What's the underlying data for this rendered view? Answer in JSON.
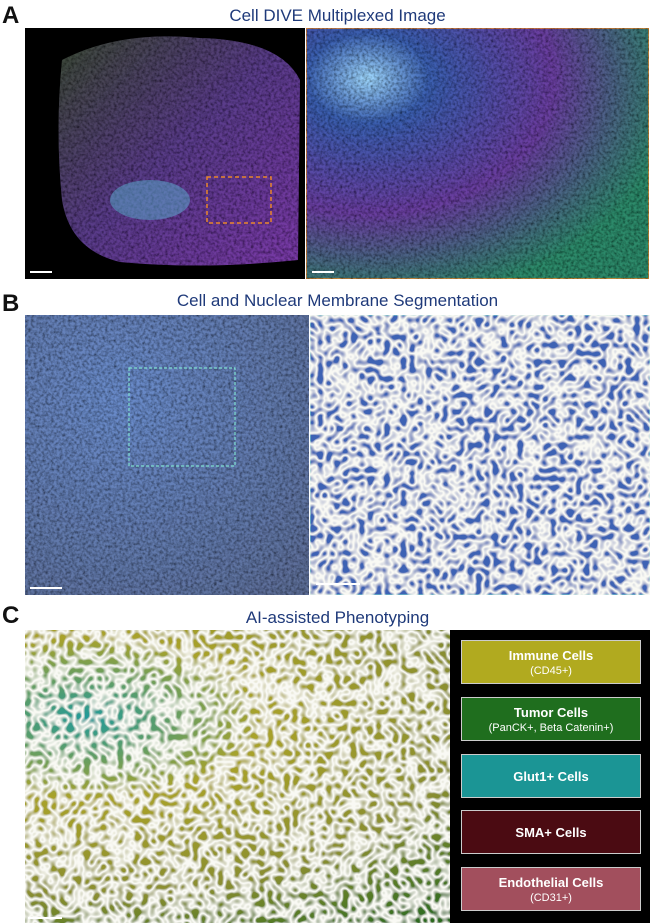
{
  "panels": [
    {
      "letter": "A",
      "title": "Cell DIVE Multiplexed Image"
    },
    {
      "letter": "B",
      "title": "Cell and Nuclear Membrane Segmentation"
    },
    {
      "letter": "C",
      "title": "AI-assisted Phenotyping"
    }
  ],
  "legend": [
    {
      "name": "Immune Cells",
      "marker": "(CD45+)"
    },
    {
      "name": "Tumor Cells",
      "marker": "(PanCK+, Beta Catenin+)"
    },
    {
      "name": "Glut1+ Cells"
    },
    {
      "name": "SMA+ Cells"
    },
    {
      "name": "Endothelial Cells",
      "marker": "(CD31+)"
    }
  ]
}
